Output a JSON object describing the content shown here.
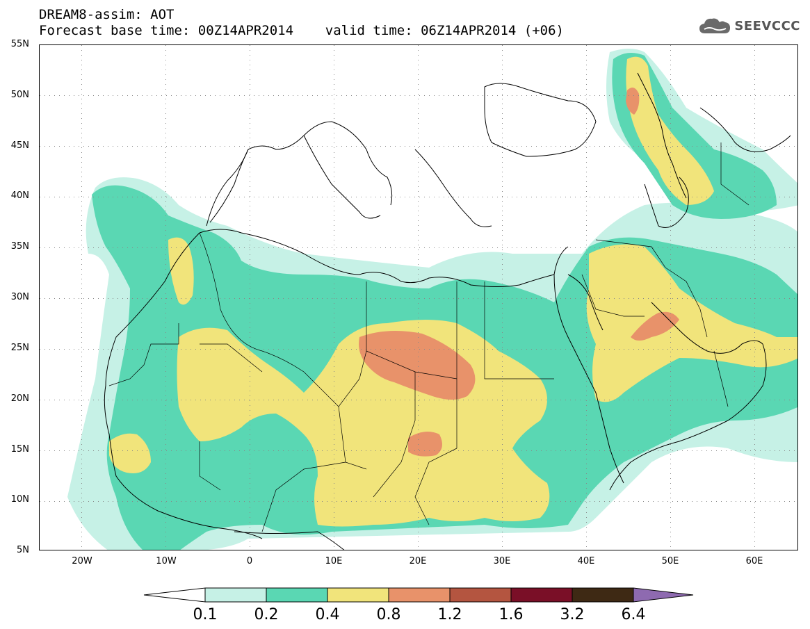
{
  "header": {
    "line1": "DREAM8-assim: AOT",
    "line2": "Forecast base time: 00Z14APR2014    valid time: 06Z14APR2014 (+06)",
    "logo_text": "SEEVCCC",
    "logo_icon": "cloud-icon"
  },
  "axes": {
    "lat_labels": [
      "55N",
      "50N",
      "45N",
      "40N",
      "35N",
      "30N",
      "25N",
      "20N",
      "15N",
      "10N",
      "5N"
    ],
    "lon_labels": [
      "20W",
      "10W",
      "0",
      "10E",
      "20E",
      "30E",
      "40E",
      "50E",
      "60E"
    ]
  },
  "colorbar": {
    "labels": [
      "0.1",
      "0.2",
      "0.4",
      "0.8",
      "1.2",
      "1.6",
      "3.2",
      "6.4"
    ],
    "colors": [
      "#c6f1e6",
      "#5ad7b3",
      "#f1e47b",
      "#e8926a",
      "#b45540",
      "#7a0f27",
      "#3e2914",
      "#8e6ab0"
    ]
  },
  "colors": {
    "c01": "#c6f1e6",
    "c02": "#5ad7b3",
    "c04": "#f1e47b",
    "c08": "#e8926a"
  }
}
